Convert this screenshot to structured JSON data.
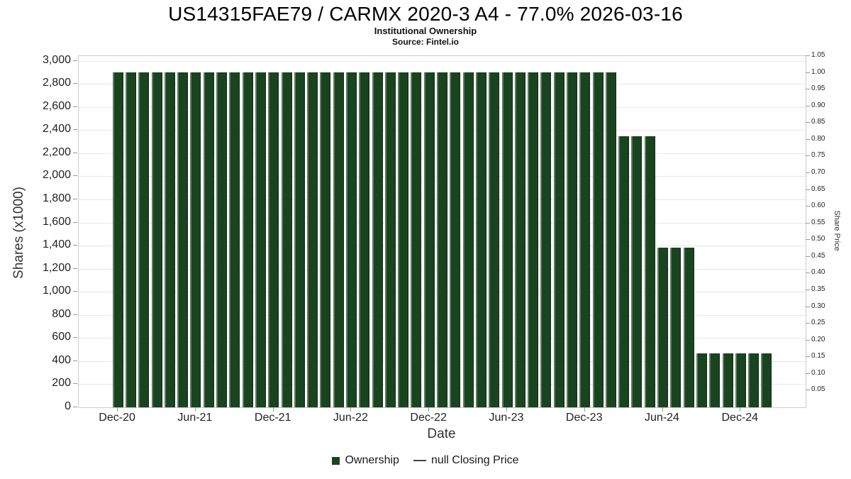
{
  "chart_data": {
    "type": "bar",
    "title": "US14315FAE79 / CARMX 2020-3 A4 - 77.0% 2026-03-16",
    "subtitle": "Institutional Ownership",
    "source": "Source: Fintel.io",
    "bar_color": "#1a431f",
    "categories": [
      "Dec-20",
      "Jan-21",
      "Feb-21",
      "Mar-21",
      "Apr-21",
      "May-21",
      "Jun-21",
      "Jul-21",
      "Aug-21",
      "Sep-21",
      "Oct-21",
      "Nov-21",
      "Dec-21",
      "Jan-22",
      "Feb-22",
      "Mar-22",
      "Apr-22",
      "May-22",
      "Jun-22",
      "Jul-22",
      "Aug-22",
      "Sep-22",
      "Oct-22",
      "Nov-22",
      "Dec-22",
      "Jan-23",
      "Feb-23",
      "Mar-23",
      "Apr-23",
      "May-23",
      "Jun-23",
      "Jul-23",
      "Aug-23",
      "Sep-23",
      "Oct-23",
      "Nov-23",
      "Dec-23",
      "Jan-24",
      "Feb-24",
      "Mar-24",
      "Apr-24",
      "May-24",
      "Jun-24",
      "Jul-24",
      "Aug-24",
      "Sep-24",
      "Oct-24",
      "Nov-24",
      "Dec-24",
      "Jan-25",
      "Feb-25"
    ],
    "series": [
      {
        "name": "Ownership",
        "values": [
          2900,
          2900,
          2900,
          2900,
          2900,
          2900,
          2900,
          2900,
          2900,
          2900,
          2900,
          2900,
          2900,
          2900,
          2900,
          2900,
          2900,
          2900,
          2900,
          2900,
          2900,
          2900,
          2900,
          2900,
          2900,
          2900,
          2900,
          2900,
          2900,
          2900,
          2900,
          2900,
          2900,
          2900,
          2900,
          2900,
          2900,
          2900,
          2900,
          2345,
          2345,
          2345,
          1385,
          1385,
          1385,
          465,
          465,
          465,
          465,
          465,
          465
        ]
      }
    ],
    "x_axis": {
      "title": "Date",
      "tick_indices": [
        0,
        6,
        12,
        18,
        24,
        30,
        36,
        42,
        48
      ],
      "tick_labels": [
        "Dec-20",
        "Jun-21",
        "Dec-21",
        "Jun-22",
        "Dec-22",
        "Jun-23",
        "Dec-23",
        "Jun-24",
        "Dec-24"
      ]
    },
    "left_axis": {
      "title": "Shares (x1000)",
      "axis_max": 3040,
      "tick_values": [
        0,
        200,
        400,
        600,
        800,
        1000,
        1200,
        1400,
        1600,
        1800,
        2000,
        2200,
        2400,
        2600,
        2800,
        3000
      ],
      "tick_labels": [
        "0",
        "200",
        "400",
        "600",
        "800",
        "1,000",
        "1,200",
        "1,400",
        "1,600",
        "1,800",
        "2,000",
        "2,200",
        "2,400",
        "2,600",
        "2,800",
        "3,000"
      ]
    },
    "right_axis": {
      "title": "Share Price",
      "axis_top": 1.05,
      "tick_values": [
        1.05,
        1.0,
        0.95,
        0.9,
        0.85,
        0.8,
        0.75,
        0.7,
        0.65,
        0.6,
        0.55,
        0.5,
        0.45,
        0.4,
        0.35,
        0.3,
        0.25,
        0.2,
        0.15,
        0.1,
        0.05
      ],
      "tick_labels": [
        "1.05",
        "1.00",
        "0.95",
        "0.90",
        "0.85",
        "0.80",
        "0.75",
        "0.70",
        "0.65",
        "0.60",
        "0.55",
        "0.50",
        "0.45",
        "0.40",
        "0.35",
        "0.30",
        "0.25",
        "0.20",
        "0.15",
        "0.10",
        "0.05"
      ]
    },
    "legend": [
      {
        "label": "Ownership",
        "symbol": "square",
        "color": "#1a431f"
      },
      {
        "label": "null Closing Price",
        "symbol": "line",
        "color": "#444444"
      }
    ],
    "grid": "horizontal",
    "legend_position": "bottom"
  }
}
